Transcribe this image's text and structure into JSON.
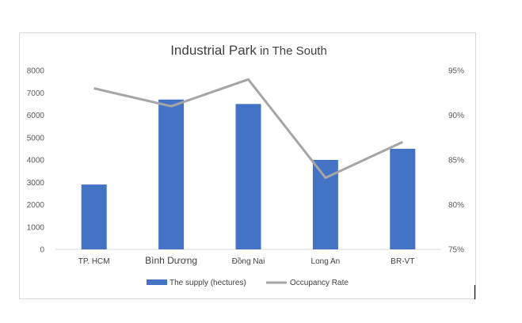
{
  "chart_data": {
    "type": "bar",
    "title_part1": "Industrial Park",
    "title_part2": " in The South",
    "categories": [
      "TP. HCM",
      "Bình Dương",
      "Đồng Nai",
      "Long An",
      "BR-VT"
    ],
    "series": [
      {
        "name": "The supply (hectures)",
        "type": "bar",
        "axis": "left",
        "color": "#4472c4",
        "values": [
          2900,
          6700,
          6500,
          4000,
          4500
        ]
      },
      {
        "name": "Occupancy Rate",
        "type": "line",
        "axis": "right",
        "color": "#a5a5a5",
        "values": [
          93,
          91,
          94,
          83,
          87
        ]
      }
    ],
    "y_left": {
      "min": 0,
      "max": 8000,
      "step": 1000,
      "ticks": [
        "0",
        "1000",
        "2000",
        "3000",
        "4000",
        "5000",
        "6000",
        "7000",
        "8000"
      ]
    },
    "y_right": {
      "min": 75,
      "max": 95,
      "step": 5,
      "ticks": [
        "75%",
        "80%",
        "85%",
        "90%",
        "95%"
      ]
    },
    "grid": false,
    "legend_position": "bottom"
  }
}
